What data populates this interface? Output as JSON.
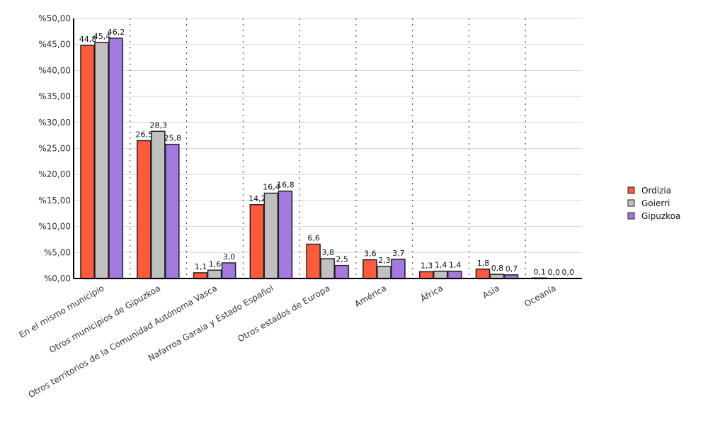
{
  "chart_data": {
    "type": "bar",
    "categories": [
      "En el mismo municipio",
      "Otros municipios de Gipuzkoa",
      "Otros territorios de la Comunidad Autónoma Vasca",
      "Nafarroa Garaia y Estado Español",
      "Otros estados de Europa",
      "América",
      "África",
      "Asia",
      "Oceanía"
    ],
    "series": [
      {
        "name": "Ordizia",
        "color": "#ff5a3c",
        "values": [
          44.8,
          26.5,
          1.1,
          14.2,
          6.6,
          3.6,
          1.3,
          1.8,
          0.1
        ],
        "labels": [
          "44,8",
          "26,5",
          "1,1",
          "14,2",
          "6,6",
          "3,6",
          "1,3",
          "1,8",
          "0,1"
        ]
      },
      {
        "name": "Goierri",
        "color": "#c0c0c0",
        "values": [
          45.4,
          28.3,
          1.6,
          16.4,
          3.8,
          2.3,
          1.4,
          0.8,
          0.0
        ],
        "labels": [
          "45,4",
          "28,3",
          "1,6",
          "16,4",
          "3,8",
          "2,3",
          "1,4",
          "0,8",
          "0,0"
        ]
      },
      {
        "name": "Gipuzkoa",
        "color": "#a57ae0",
        "values": [
          46.2,
          25.8,
          3.0,
          16.8,
          2.5,
          3.7,
          1.4,
          0.7,
          0.0
        ],
        "labels": [
          "46,2",
          "25,8",
          "3,0",
          "16,8",
          "2,5",
          "3,7",
          "1,4",
          "0,7",
          "0,0"
        ]
      }
    ],
    "yticks": [
      "%0,00",
      "%5,00",
      "%10,00",
      "%15,00",
      "%20,00",
      "%25,00",
      "%30,00",
      "%35,00",
      "%40,00",
      "%45,00",
      "%50,00"
    ],
    "ylim": [
      0,
      50
    ],
    "grid": true,
    "legend": "right"
  }
}
